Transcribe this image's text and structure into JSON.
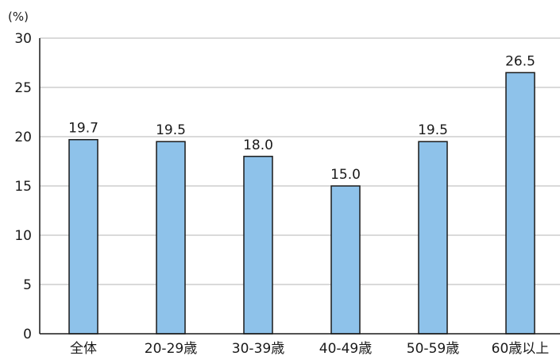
{
  "chart_data": {
    "type": "bar",
    "unit_label": "(%)",
    "categories": [
      "全体",
      "20-29歳",
      "30-39歳",
      "40-49歳",
      "50-59歳",
      "60歳以上"
    ],
    "values": [
      19.7,
      19.5,
      18.0,
      15.0,
      19.5,
      26.5
    ],
    "data_labels": [
      "19.7",
      "19.5",
      "18.0",
      "15.0",
      "19.5",
      "26.5"
    ],
    "yticks": [
      0,
      5,
      10,
      15,
      20,
      25,
      30
    ],
    "ylim": [
      0,
      30
    ],
    "grid": true,
    "legend": "none",
    "colors": {
      "bar_fill": "#8ec2ea",
      "bar_stroke": "#1a1a1a",
      "grid": "#b5b5b5",
      "axis": "#1a1a1a"
    }
  }
}
